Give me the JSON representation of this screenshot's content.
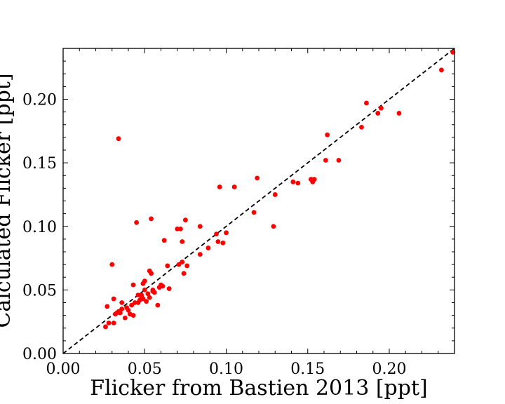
{
  "chart_data": {
    "type": "scatter",
    "xlabel": "Flicker from Bastien 2013 [ppt]",
    "ylabel": "Calculated Flicker [ppt]",
    "xlim": [
      0.0,
      0.24
    ],
    "ylim": [
      0.0,
      0.24
    ],
    "x_ticks": [
      "0.00",
      "0.05",
      "0.10",
      "0.15",
      "0.20"
    ],
    "y_ticks": [
      "0.00",
      "0.05",
      "0.10",
      "0.15",
      "0.20"
    ],
    "grid": false,
    "reference_line": {
      "style": "dashed",
      "color": "#000000",
      "from": [
        0.0,
        0.0
      ],
      "to": [
        0.24,
        0.24
      ]
    },
    "marker_color": "#ff0000",
    "points": [
      [
        0.026,
        0.021
      ],
      [
        0.027,
        0.037
      ],
      [
        0.028,
        0.024
      ],
      [
        0.03,
        0.07
      ],
      [
        0.031,
        0.043
      ],
      [
        0.031,
        0.024
      ],
      [
        0.032,
        0.031
      ],
      [
        0.033,
        0.032
      ],
      [
        0.034,
        0.169
      ],
      [
        0.034,
        0.033
      ],
      [
        0.035,
        0.032
      ],
      [
        0.036,
        0.04
      ],
      [
        0.036,
        0.035
      ],
      [
        0.038,
        0.028
      ],
      [
        0.039,
        0.036
      ],
      [
        0.04,
        0.034
      ],
      [
        0.041,
        0.031
      ],
      [
        0.042,
        0.038
      ],
      [
        0.043,
        0.03
      ],
      [
        0.043,
        0.054
      ],
      [
        0.044,
        0.04
      ],
      [
        0.045,
        0.103
      ],
      [
        0.046,
        0.046
      ],
      [
        0.046,
        0.04
      ],
      [
        0.047,
        0.042
      ],
      [
        0.048,
        0.046
      ],
      [
        0.048,
        0.045
      ],
      [
        0.049,
        0.043
      ],
      [
        0.049,
        0.055
      ],
      [
        0.05,
        0.057
      ],
      [
        0.05,
        0.05
      ],
      [
        0.051,
        0.041
      ],
      [
        0.052,
        0.047
      ],
      [
        0.053,
        0.044
      ],
      [
        0.053,
        0.065
      ],
      [
        0.054,
        0.106
      ],
      [
        0.054,
        0.063
      ],
      [
        0.055,
        0.049
      ],
      [
        0.055,
        0.05
      ],
      [
        0.056,
        0.048
      ],
      [
        0.058,
        0.038
      ],
      [
        0.059,
        0.052
      ],
      [
        0.06,
        0.054
      ],
      [
        0.061,
        0.053
      ],
      [
        0.062,
        0.089
      ],
      [
        0.064,
        0.069
      ],
      [
        0.065,
        0.051
      ],
      [
        0.07,
        0.098
      ],
      [
        0.071,
        0.07
      ],
      [
        0.072,
        0.098
      ],
      [
        0.073,
        0.088
      ],
      [
        0.073,
        0.072
      ],
      [
        0.074,
        0.063
      ],
      [
        0.075,
        0.105
      ],
      [
        0.076,
        0.069
      ],
      [
        0.084,
        0.1
      ],
      [
        0.084,
        0.078
      ],
      [
        0.089,
        0.083
      ],
      [
        0.094,
        0.094
      ],
      [
        0.095,
        0.088
      ],
      [
        0.096,
        0.131
      ],
      [
        0.098,
        0.087
      ],
      [
        0.1,
        0.095
      ],
      [
        0.105,
        0.131
      ],
      [
        0.117,
        0.111
      ],
      [
        0.119,
        0.138
      ],
      [
        0.129,
        0.1
      ],
      [
        0.13,
        0.125
      ],
      [
        0.141,
        0.135
      ],
      [
        0.144,
        0.134
      ],
      [
        0.152,
        0.137
      ],
      [
        0.153,
        0.135
      ],
      [
        0.154,
        0.137
      ],
      [
        0.161,
        0.152
      ],
      [
        0.162,
        0.172
      ],
      [
        0.169,
        0.152
      ],
      [
        0.183,
        0.178
      ],
      [
        0.186,
        0.197
      ],
      [
        0.193,
        0.189
      ],
      [
        0.195,
        0.193
      ],
      [
        0.206,
        0.189
      ],
      [
        0.232,
        0.223
      ],
      [
        0.239,
        0.237
      ]
    ]
  }
}
